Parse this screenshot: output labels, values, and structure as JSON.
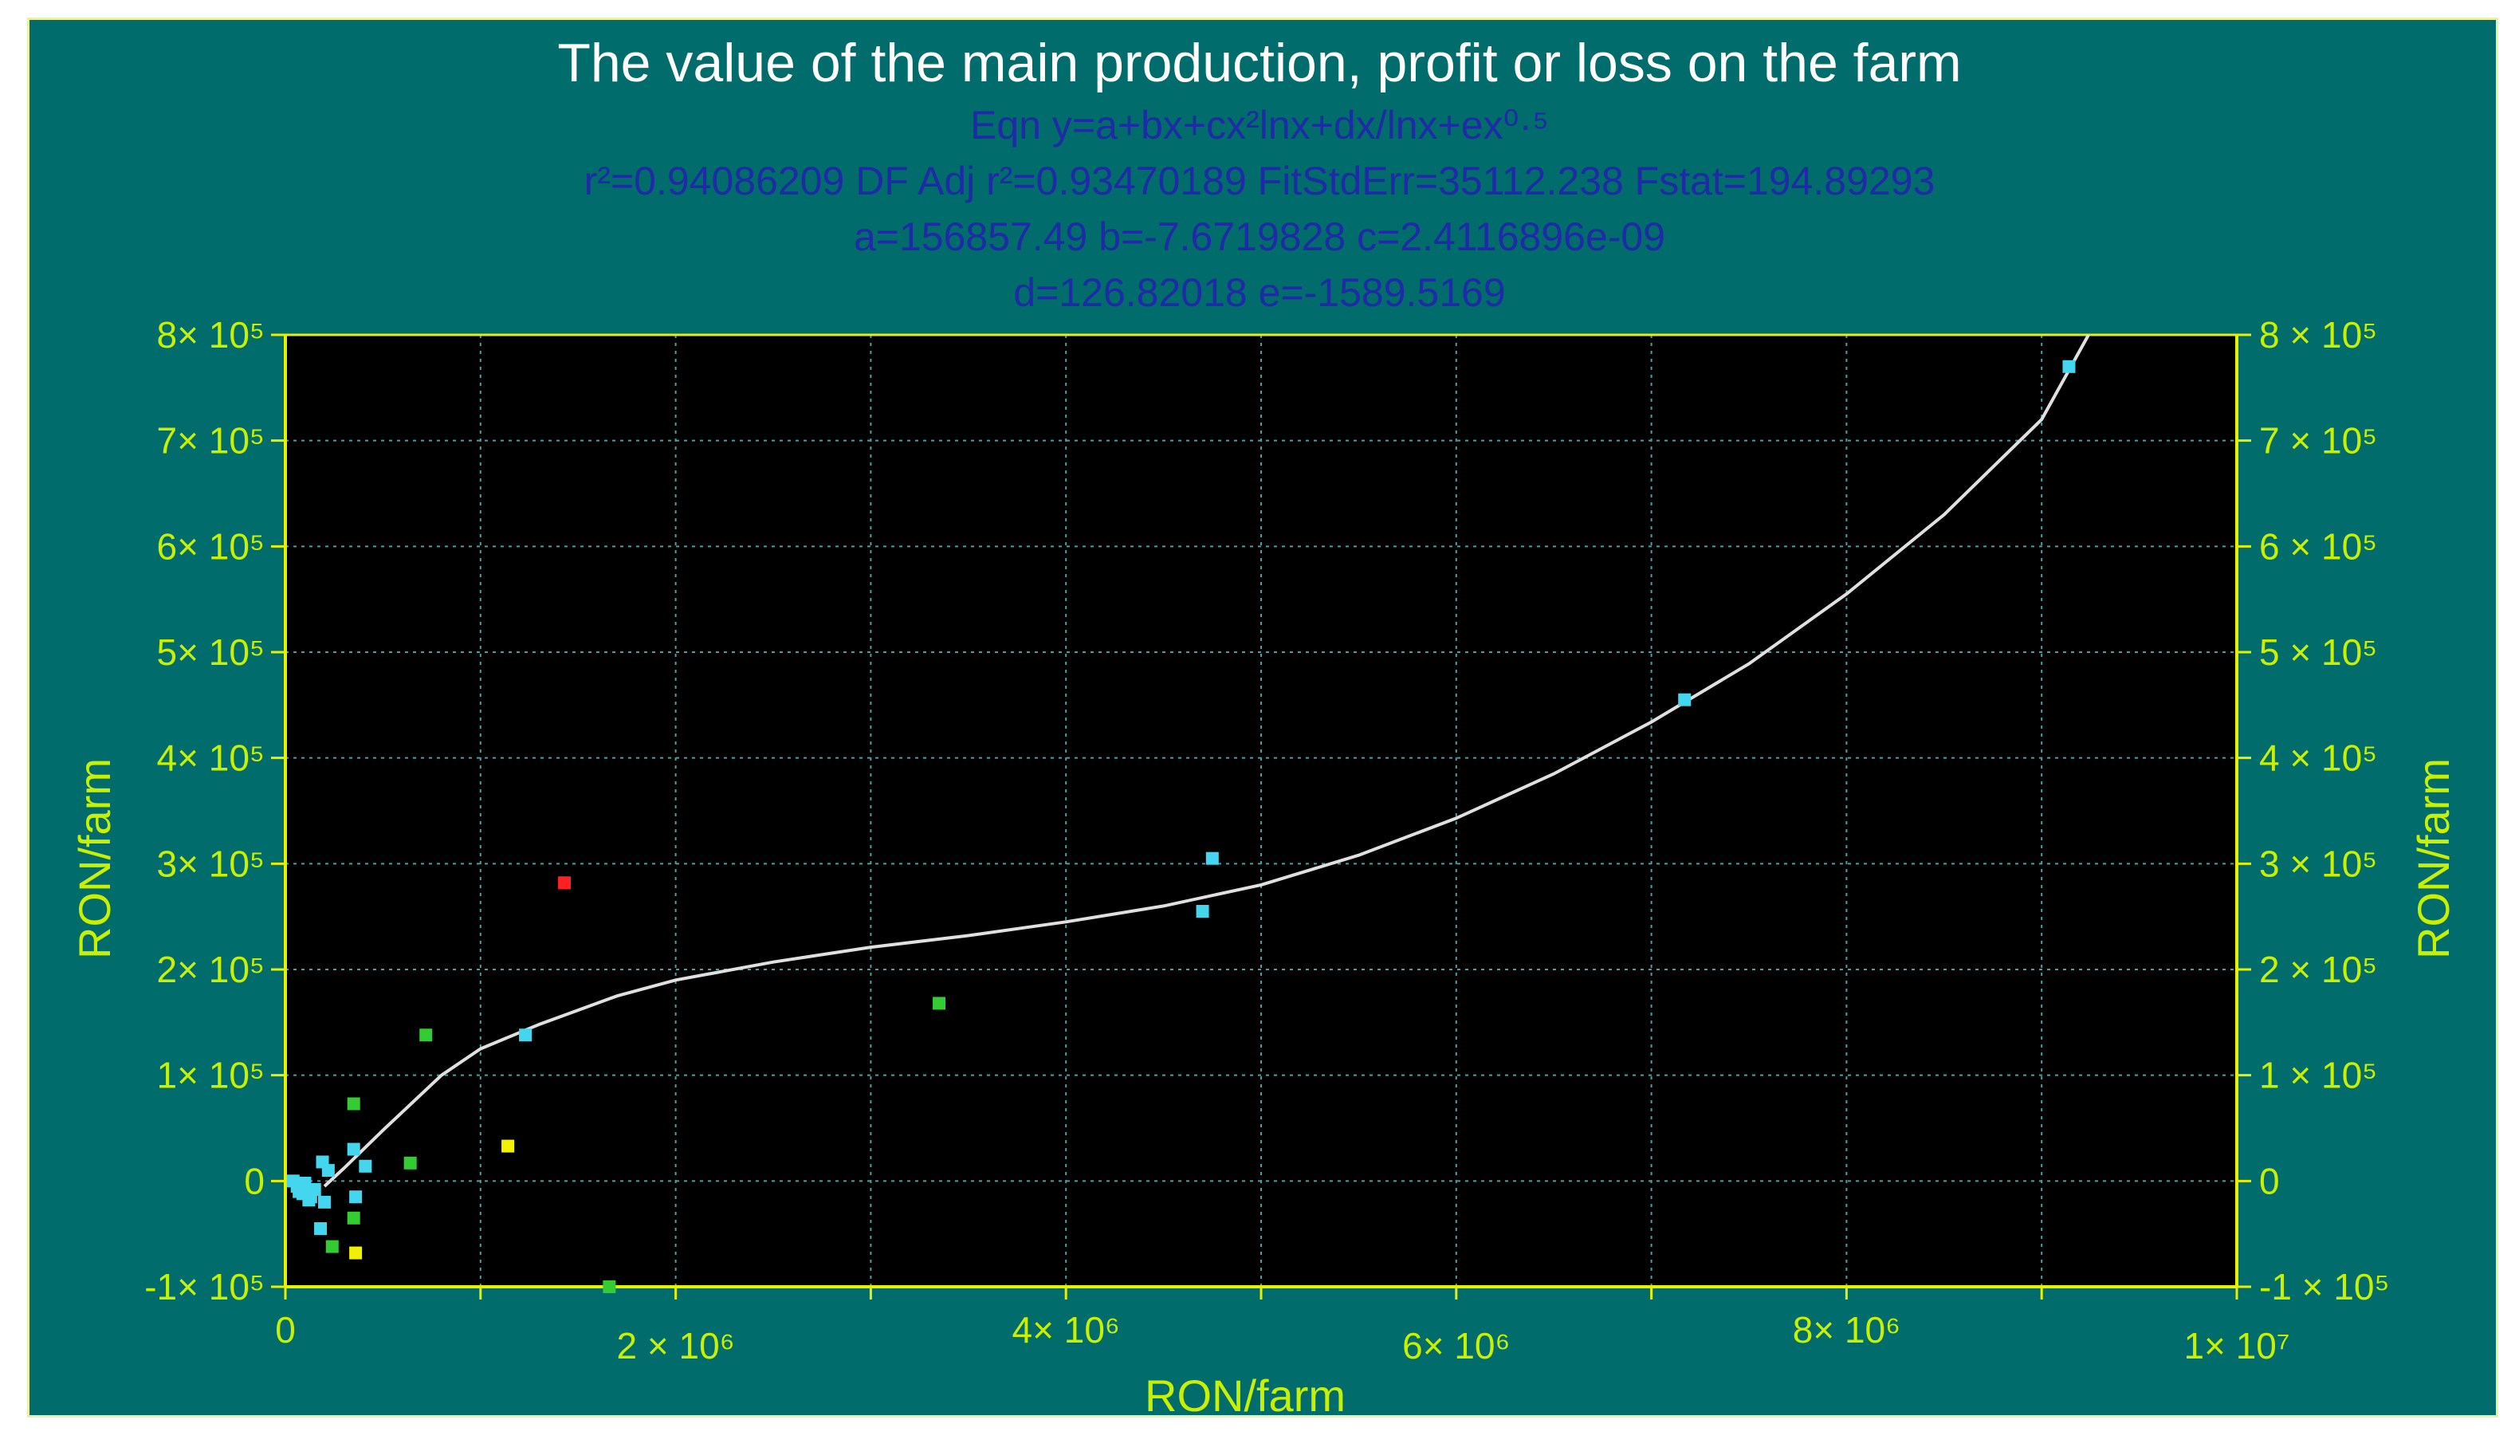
{
  "colors": {
    "frame_bg": "#016C6C",
    "plot_bg": "#000000",
    "axis": "#e8f000",
    "tick_text": "#c8f000",
    "title_text": "#ffffff",
    "equation_text": "#1f2aa6",
    "grid": "#4aa0a0",
    "curve": "#e0e0e0"
  },
  "header": {
    "title": "The value of the main production, profit or loss on the farm",
    "equation": "Eqn  y=a+bx+cx²lnx+dx/lnx+ex⁰·⁵",
    "stats": "r²=0.94086209  DF Adj r²=0.93470189  FitStdErr=35112.238  Fstat=194.89293",
    "params": "a=156857.49 b=-7.6719828 c=2.4116896e-09",
    "params2": "d=126.82018 e=-1589.5169"
  },
  "chart_data": {
    "type": "scatter",
    "title": "The value of the main production, profit or loss on the farm",
    "xlabel": "RON/farm",
    "ylabel": "RON/farm",
    "ylabel_right": "RON/farm",
    "xlim": [
      0,
      10000000
    ],
    "ylim": [
      -100000,
      800000
    ],
    "grid": true,
    "x_ticks": [
      {
        "value": 0,
        "label": "0"
      },
      {
        "value": 2000000,
        "label": "2 × 10⁶"
      },
      {
        "value": 4000000,
        "label": "4× 10⁶"
      },
      {
        "value": 6000000,
        "label": "6× 10⁶"
      },
      {
        "value": 8000000,
        "label": "8× 10⁶"
      },
      {
        "value": 10000000,
        "label": "1× 10⁷"
      }
    ],
    "y_ticks_left": [
      {
        "value": 800000,
        "label": "8× 10⁵"
      },
      {
        "value": 700000,
        "label": "7× 10⁵"
      },
      {
        "value": 600000,
        "label": "6× 10⁵"
      },
      {
        "value": 500000,
        "label": "5× 10⁵"
      },
      {
        "value": 400000,
        "label": "4× 10⁵"
      },
      {
        "value": 300000,
        "label": "3× 10⁵"
      },
      {
        "value": 200000,
        "label": "2× 10⁵"
      },
      {
        "value": 100000,
        "label": "1× 10⁵"
      },
      {
        "value": 0,
        "label": "0"
      },
      {
        "value": -100000,
        "label": "-1× 10⁵"
      }
    ],
    "y_ticks_right": [
      {
        "value": 800000,
        "label": "8 × 10⁵"
      },
      {
        "value": 700000,
        "label": "7 × 10⁵"
      },
      {
        "value": 600000,
        "label": "6 × 10⁵"
      },
      {
        "value": 500000,
        "label": "5 × 10⁵"
      },
      {
        "value": 400000,
        "label": "4 × 10⁵"
      },
      {
        "value": 300000,
        "label": "3 × 10⁵"
      },
      {
        "value": 200000,
        "label": "2 × 10⁵"
      },
      {
        "value": 100000,
        "label": "1 × 10⁵"
      },
      {
        "value": 0,
        "label": "0"
      },
      {
        "value": -100000,
        "label": "-1 × 10⁵"
      }
    ],
    "points": [
      {
        "x": 9140000,
        "y": 770000,
        "color": "#44d6ee"
      },
      {
        "x": 7170000,
        "y": 455000,
        "color": "#44d6ee"
      },
      {
        "x": 4750000,
        "y": 305000,
        "color": "#44d6ee"
      },
      {
        "x": 4700000,
        "y": 255000,
        "color": "#44d6ee"
      },
      {
        "x": 3350000,
        "y": 168000,
        "color": "#33cc33"
      },
      {
        "x": 1430000,
        "y": 282000,
        "color": "#ff2020"
      },
      {
        "x": 1230000,
        "y": 138000,
        "color": "#44d6ee"
      },
      {
        "x": 1140000,
        "y": 33000,
        "color": "#f0f000"
      },
      {
        "x": 720000,
        "y": 138000,
        "color": "#33cc33"
      },
      {
        "x": 640000,
        "y": 17000,
        "color": "#33cc33"
      },
      {
        "x": 410000,
        "y": 14000,
        "color": "#44d6ee"
      },
      {
        "x": 350000,
        "y": 73000,
        "color": "#33cc33"
      },
      {
        "x": 350000,
        "y": 30000,
        "color": "#44d6ee"
      },
      {
        "x": 360000,
        "y": -15000,
        "color": "#44d6ee"
      },
      {
        "x": 350000,
        "y": -35000,
        "color": "#33cc33"
      },
      {
        "x": 360000,
        "y": -68000,
        "color": "#f0f000"
      },
      {
        "x": 240000,
        "y": -62000,
        "color": "#33cc33"
      },
      {
        "x": 180000,
        "y": -45000,
        "color": "#44d6ee"
      },
      {
        "x": 200000,
        "y": -20000,
        "color": "#44d6ee"
      },
      {
        "x": 220000,
        "y": 10000,
        "color": "#44d6ee"
      },
      {
        "x": 190000,
        "y": 18000,
        "color": "#44d6ee"
      },
      {
        "x": 120000,
        "y": -18000,
        "color": "#44d6ee"
      },
      {
        "x": 90000,
        "y": -12000,
        "color": "#44d6ee"
      },
      {
        "x": 60000,
        "y": -5000,
        "color": "#44d6ee"
      },
      {
        "x": 40000,
        "y": 0,
        "color": "#44d6ee"
      },
      {
        "x": 150000,
        "y": -8000,
        "color": "#44d6ee"
      },
      {
        "x": 100000,
        "y": -2000,
        "color": "#44d6ee"
      },
      {
        "x": 130000,
        "y": -15000,
        "color": "#44d6ee"
      },
      {
        "x": 70000,
        "y": -10000,
        "color": "#44d6ee"
      },
      {
        "x": 1660000,
        "y": -100000,
        "color": "#33cc33"
      }
    ],
    "fit_curve": {
      "equation": "y=a+bx+cx²lnx+dx/lnx+ex^0.5",
      "a": 156857.49,
      "b": -7.6719828,
      "c": 2.4116896e-09,
      "d": 126.82018,
      "e": -1589.5169,
      "x": [
        200000,
        300000,
        500000,
        800000,
        1000000,
        1300000,
        1700000,
        2000000,
        2500000,
        3000000,
        3500000,
        4000000,
        4500000,
        5000000,
        5500000,
        6000000,
        6500000,
        7000000,
        7500000,
        8000000,
        8500000,
        9000000,
        9240000
      ],
      "y": [
        -5000,
        12000,
        48000,
        100000,
        125000,
        148000,
        175000,
        190000,
        207000,
        221000,
        232000,
        245000,
        260000,
        280000,
        308000,
        343000,
        385000,
        434000,
        489000,
        555000,
        630000,
        720000,
        800000
      ]
    }
  }
}
